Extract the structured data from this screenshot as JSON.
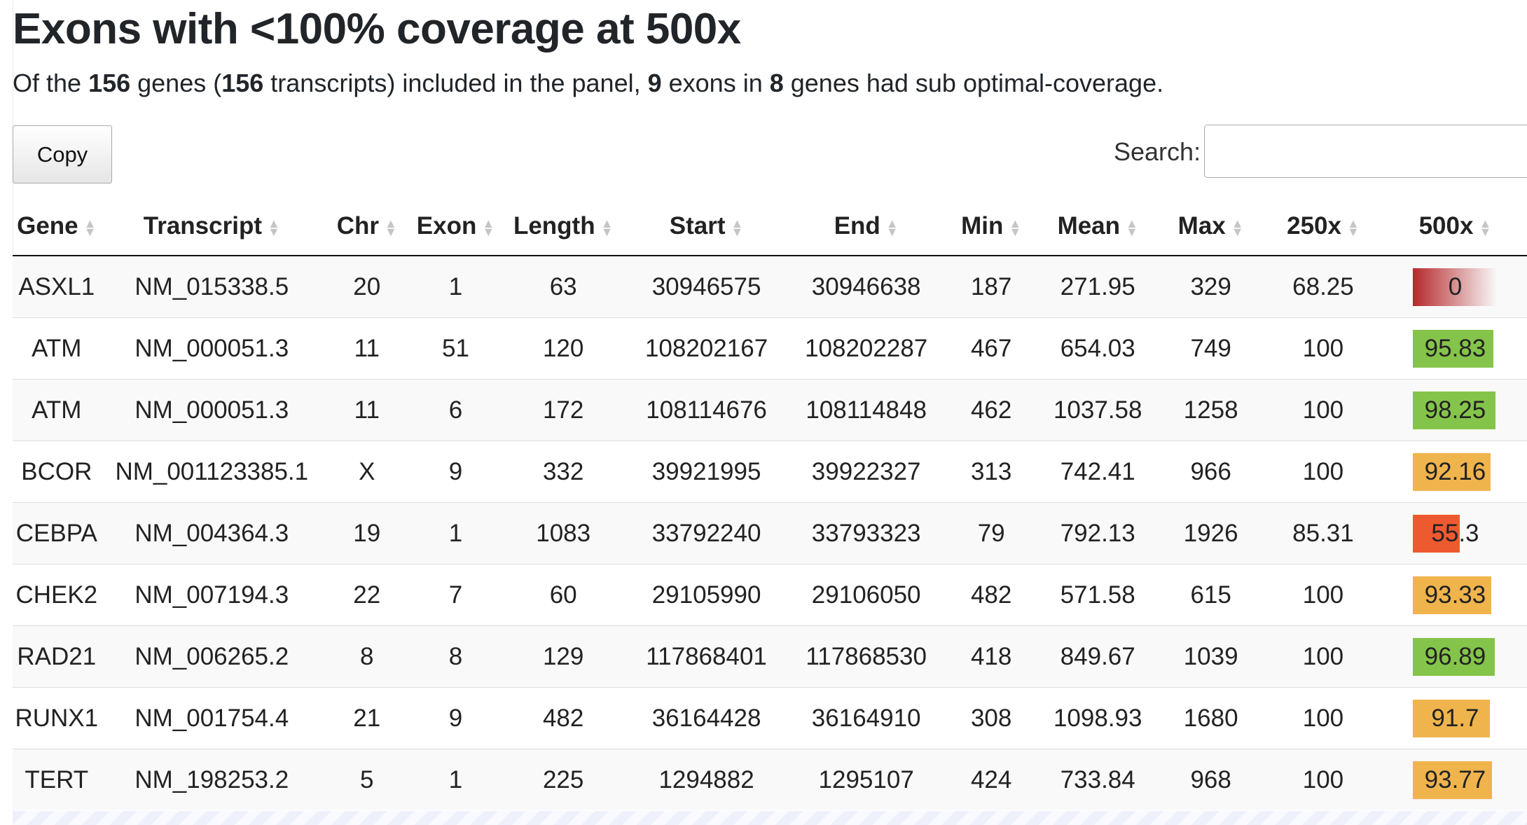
{
  "title": "Exons with <100% coverage at 500x",
  "summary": {
    "p1": "Of the ",
    "genes": "156",
    "p2": " genes (",
    "transcripts": "156",
    "p3": " transcripts) included in the panel, ",
    "exons": "9",
    "p4": " exons in ",
    "gene_count": "8",
    "p5": " genes had sub optimal-coverage."
  },
  "toolbar": {
    "copy_label": "Copy",
    "search_label": "Search:",
    "search_value": ""
  },
  "table": {
    "columns": [
      "Gene",
      "Transcript",
      "Chr",
      "Exon",
      "Length",
      "Start",
      "End",
      "Min",
      "Mean",
      "Max",
      "250x",
      "500x"
    ],
    "rows": [
      [
        "ASXL1",
        "NM_015338.5",
        "20",
        "1",
        "63",
        "30946575",
        "30946638",
        "187",
        "271.95",
        "329",
        "68.25",
        "0"
      ],
      [
        "ATM",
        "NM_000051.3",
        "11",
        "51",
        "120",
        "108202167",
        "108202287",
        "467",
        "654.03",
        "749",
        "100",
        "95.83"
      ],
      [
        "ATM",
        "NM_000051.3",
        "11",
        "6",
        "172",
        "108114676",
        "108114848",
        "462",
        "1037.58",
        "1258",
        "100",
        "98.25"
      ],
      [
        "BCOR",
        "NM_001123385.1",
        "X",
        "9",
        "332",
        "39921995",
        "39922327",
        "313",
        "742.41",
        "966",
        "100",
        "92.16"
      ],
      [
        "CEBPA",
        "NM_004364.3",
        "19",
        "1",
        "1083",
        "33792240",
        "33793323",
        "79",
        "792.13",
        "1926",
        "85.31",
        "55.3"
      ],
      [
        "CHEK2",
        "NM_007194.3",
        "22",
        "7",
        "60",
        "29105990",
        "29106050",
        "482",
        "571.58",
        "615",
        "100",
        "93.33"
      ],
      [
        "RAD21",
        "NM_006265.2",
        "8",
        "8",
        "129",
        "117868401",
        "117868530",
        "418",
        "849.67",
        "1039",
        "100",
        "96.89"
      ],
      [
        "RUNX1",
        "NM_001754.4",
        "21",
        "9",
        "482",
        "36164428",
        "36164910",
        "308",
        "1098.93",
        "1680",
        "100",
        "91.7"
      ],
      [
        "TERT",
        "NM_198253.2",
        "5",
        "1",
        "225",
        "1294882",
        "1295107",
        "424",
        "733.84",
        "968",
        "100",
        "93.77"
      ]
    ]
  },
  "coverage_500x_colors": {
    "zero": "#b5292c",
    "low": "#ee5a30",
    "mid": "#f0b44d",
    "high": "#85c44a"
  }
}
